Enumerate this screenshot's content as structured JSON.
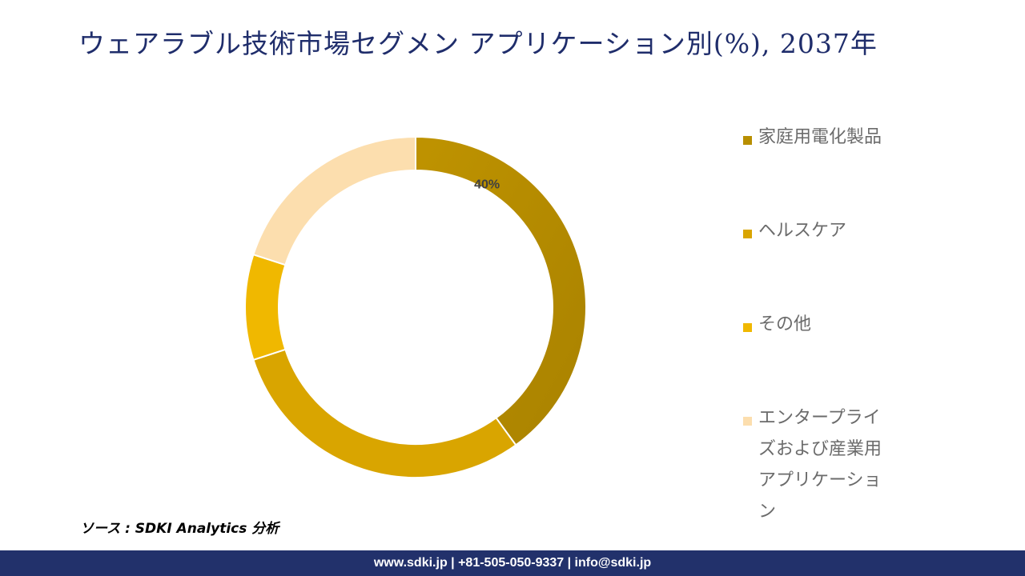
{
  "title": "ウェアラブル技術市場セグメン アプリケーション別(%), 2037年",
  "chart_data": {
    "type": "pie",
    "style": "donut",
    "categories": [
      "家庭用電化製品",
      "ヘルスケア",
      "その他",
      "エンタープライズおよび産業用アプリケーション"
    ],
    "values": [
      40,
      30,
      10,
      20
    ],
    "data_labels": [
      "40%",
      "",
      "",
      ""
    ],
    "colors": [
      "#b88f00",
      "#d9a500",
      "#f0b800",
      "#fcdeae"
    ],
    "legend_position": "right"
  },
  "source": "ソース : SDKI Analytics 分析",
  "footer": "www.sdki.jp | +81-505-050-9337 | info@sdki.jp"
}
